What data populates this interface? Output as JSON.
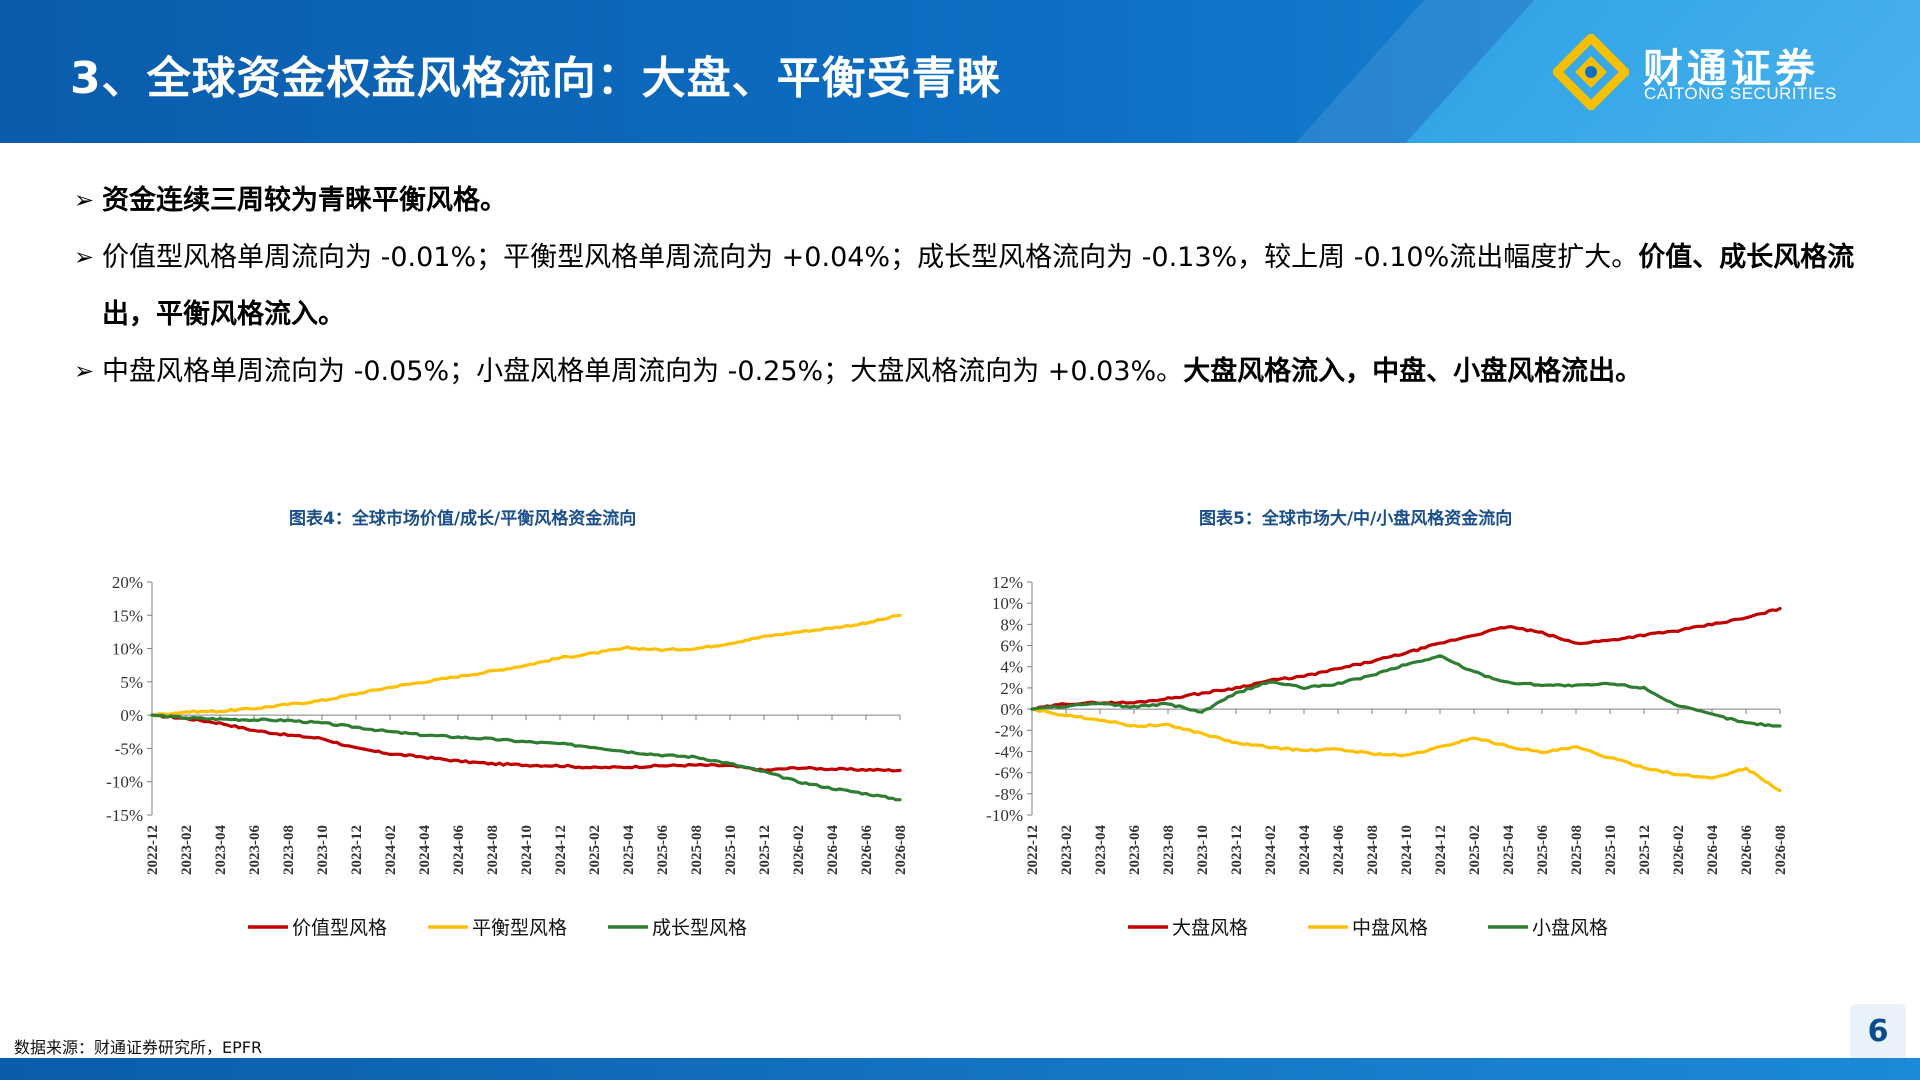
{
  "header": {
    "title": "3、全球资金权益风格流向：大盘、平衡受青睐",
    "logo_cn": "财通证券",
    "logo_en": "CAITONG SECURITIES"
  },
  "bullets": [
    {
      "runs": [
        {
          "text": "资金连续三周较为青睐平衡风格。",
          "bold": true
        }
      ]
    },
    {
      "runs": [
        {
          "text": "价值型风格单周流向为 -0.01%；平衡型风格单周流向为 +0.04%；成长型风格流向为 -0.13%，较上周 -0.10%流出幅度扩大。",
          "bold": false
        },
        {
          "text": "价值、成长风格流出，平衡风格流入。",
          "bold": true
        }
      ]
    },
    {
      "runs": [
        {
          "text": "中盘风格单周流向为 -0.05%；小盘风格单周流向为 -0.25%；大盘风格流向为 +0.03%。",
          "bold": false
        },
        {
          "text": "大盘风格流入，中盘、小盘风格流出。",
          "bold": true
        }
      ]
    }
  ],
  "chart_data": [
    {
      "type": "line",
      "title": "图表4：全球市场价值/成长/平衡风格资金流向",
      "unit": "%",
      "ylim": [
        -15,
        20
      ],
      "y_ticks": [
        -15,
        -10,
        -5,
        0,
        5,
        10,
        15,
        20
      ],
      "y_tick_labels": [
        "-15%",
        "-10%",
        "-5%",
        "0%",
        "5%",
        "10%",
        "15%",
        "20%"
      ],
      "x_tick_labels": [
        "2022-12",
        "2023-02",
        "2023-04",
        "2023-06",
        "2023-08",
        "2023-10",
        "2023-12",
        "2024-02",
        "2024-04",
        "2024-06",
        "2024-08",
        "2024-10",
        "2024-12",
        "2025-02",
        "2025-04",
        "2025-06",
        "2025-08",
        "2025-10",
        "2025-12",
        "2026-02",
        "2026-04",
        "2026-06",
        "2026-08"
      ],
      "grid": false,
      "legend_position": "bottom",
      "series": [
        {
          "name": "价值型风格",
          "color": "#c00000",
          "x": [
            "2022-12",
            "2023-02",
            "2023-04",
            "2023-06",
            "2023-08",
            "2023-10",
            "2023-12",
            "2024-02",
            "2024-04",
            "2024-06",
            "2024-08",
            "2024-10",
            "2024-12",
            "2025-02",
            "2025-04",
            "2025-06",
            "2025-08",
            "2025-10",
            "2025-12",
            "2026-02",
            "2026-04",
            "2026-06",
            "2026-08"
          ],
          "values": [
            0,
            -0.5,
            -1.2,
            -2.3,
            -3.0,
            -3.5,
            -5.0,
            -5.8,
            -6.3,
            -6.9,
            -7.3,
            -7.5,
            -7.6,
            -7.9,
            -7.8,
            -7.6,
            -7.5,
            -7.6,
            -8.3,
            -7.9,
            -8.1,
            -8.2,
            -8.3
          ]
        },
        {
          "name": "平衡型风格",
          "color": "#ffc000",
          "x": [
            "2022-12",
            "2023-02",
            "2023-04",
            "2023-06",
            "2023-08",
            "2023-10",
            "2023-12",
            "2024-02",
            "2024-04",
            "2024-06",
            "2024-08",
            "2024-10",
            "2024-12",
            "2025-02",
            "2025-04",
            "2025-06",
            "2025-08",
            "2025-10",
            "2025-12",
            "2026-02",
            "2026-04",
            "2026-06",
            "2026-08"
          ],
          "values": [
            0,
            0.5,
            0.6,
            1.0,
            1.6,
            2.2,
            3.2,
            4.2,
            5.0,
            5.8,
            6.6,
            7.5,
            8.6,
            9.3,
            10.1,
            9.8,
            10.0,
            10.8,
            11.8,
            12.5,
            13.1,
            13.8,
            15.0
          ]
        },
        {
          "name": "成长型风格",
          "color": "#2e7d32",
          "x": [
            "2022-12",
            "2023-02",
            "2023-04",
            "2023-06",
            "2023-08",
            "2023-10",
            "2023-12",
            "2024-02",
            "2024-04",
            "2024-06",
            "2024-08",
            "2024-10",
            "2024-12",
            "2025-02",
            "2025-04",
            "2025-06",
            "2025-08",
            "2025-10",
            "2025-12",
            "2026-02",
            "2026-04",
            "2026-06",
            "2026-08"
          ],
          "values": [
            0,
            -0.4,
            -0.6,
            -0.7,
            -0.8,
            -1.2,
            -1.8,
            -2.5,
            -3.0,
            -3.3,
            -3.6,
            -4.0,
            -4.3,
            -4.8,
            -5.5,
            -6.0,
            -6.3,
            -7.3,
            -8.5,
            -10.0,
            -11.0,
            -11.8,
            -12.7
          ]
        }
      ]
    },
    {
      "type": "line",
      "title": "图表5：全球市场大/中/小盘风格资金流向",
      "unit": "%",
      "ylim": [
        -10,
        12
      ],
      "y_ticks": [
        -10,
        -8,
        -6,
        -4,
        -2,
        0,
        2,
        4,
        6,
        8,
        10,
        12
      ],
      "y_tick_labels": [
        "-10%",
        "-8%",
        "-6%",
        "-4%",
        "-2%",
        "0%",
        "2%",
        "4%",
        "6%",
        "8%",
        "10%",
        "12%"
      ],
      "x_tick_labels": [
        "2022-12",
        "2023-02",
        "2023-04",
        "2023-06",
        "2023-08",
        "2023-10",
        "2023-12",
        "2024-02",
        "2024-04",
        "2024-06",
        "2024-08",
        "2024-10",
        "2024-12",
        "2025-02",
        "2025-04",
        "2025-06",
        "2025-08",
        "2025-10",
        "2025-12",
        "2026-02",
        "2026-04",
        "2026-06",
        "2026-08"
      ],
      "grid": false,
      "legend_position": "bottom",
      "series": [
        {
          "name": "大盘风格",
          "color": "#c00000",
          "x": [
            "2022-12",
            "2023-02",
            "2023-04",
            "2023-06",
            "2023-08",
            "2023-10",
            "2023-12",
            "2024-02",
            "2024-04",
            "2024-06",
            "2024-08",
            "2024-10",
            "2024-12",
            "2025-02",
            "2025-04",
            "2025-06",
            "2025-08",
            "2025-10",
            "2025-12",
            "2026-02",
            "2026-04",
            "2026-06",
            "2026-08"
          ],
          "values": [
            0,
            0.5,
            0.6,
            0.6,
            1.0,
            1.5,
            2.0,
            2.7,
            3.1,
            3.8,
            4.5,
            5.3,
            6.2,
            7.0,
            7.8,
            7.2,
            6.2,
            6.5,
            7.0,
            7.4,
            8.0,
            8.6,
            9.5
          ]
        },
        {
          "name": "中盘风格",
          "color": "#ffc000",
          "x": [
            "2022-12",
            "2023-02",
            "2023-04",
            "2023-06",
            "2023-08",
            "2023-10",
            "2023-12",
            "2024-02",
            "2024-04",
            "2024-06",
            "2024-08",
            "2024-10",
            "2024-12",
            "2025-02",
            "2025-04",
            "2025-06",
            "2025-08",
            "2025-10",
            "2025-12",
            "2026-02",
            "2026-04",
            "2026-06",
            "2026-08"
          ],
          "values": [
            0,
            -0.6,
            -1.0,
            -1.6,
            -1.5,
            -2.3,
            -3.2,
            -3.6,
            -3.9,
            -3.8,
            -4.2,
            -4.4,
            -3.6,
            -2.7,
            -3.5,
            -4.1,
            -3.6,
            -4.6,
            -5.5,
            -6.2,
            -6.5,
            -5.6,
            -7.7
          ]
        },
        {
          "name": "小盘风格",
          "color": "#2e7d32",
          "x": [
            "2022-12",
            "2023-02",
            "2023-04",
            "2023-06",
            "2023-08",
            "2023-10",
            "2023-12",
            "2024-02",
            "2024-04",
            "2024-06",
            "2024-08",
            "2024-10",
            "2024-12",
            "2025-02",
            "2025-04",
            "2025-06",
            "2025-08",
            "2025-10",
            "2025-12",
            "2026-02",
            "2026-04",
            "2026-06",
            "2026-08"
          ],
          "values": [
            0,
            0.3,
            0.5,
            0.2,
            0.5,
            -0.3,
            1.5,
            2.6,
            2.0,
            2.4,
            3.2,
            4.2,
            5.0,
            3.5,
            2.5,
            2.3,
            2.2,
            2.4,
            2.0,
            0.3,
            -0.5,
            -1.3,
            -1.6
          ]
        }
      ]
    }
  ],
  "footer": {
    "source": "数据来源：财通证券研究所，EPFR",
    "page_number": "6"
  },
  "colors": {
    "brand_blue": "#0b5cab",
    "light_blue": "#33a5e6",
    "title_blue": "#1a4f8a"
  }
}
